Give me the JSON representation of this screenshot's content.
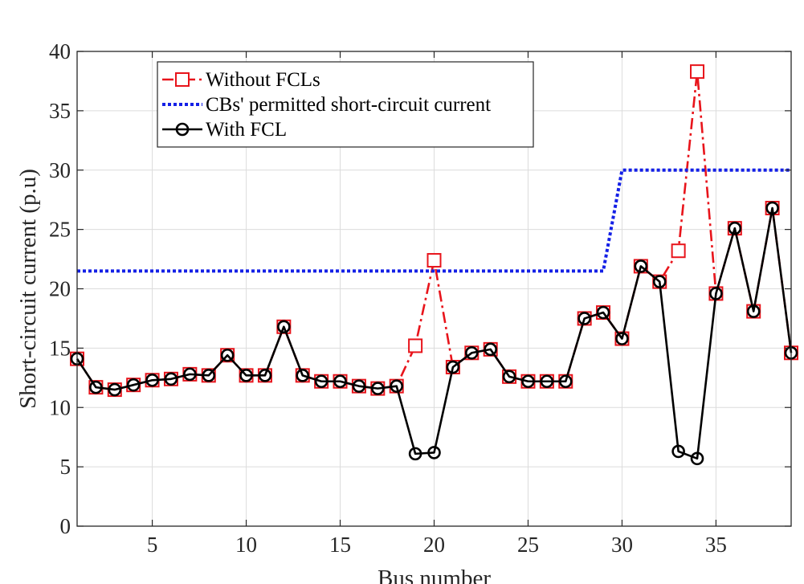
{
  "chart_data": {
    "type": "line",
    "title": "",
    "xlabel": "Bus number",
    "ylabel": "Short-circuit current (p.u)",
    "xlim": [
      1,
      39
    ],
    "ylim": [
      0,
      40
    ],
    "xticks": [
      5,
      10,
      15,
      20,
      25,
      30,
      35
    ],
    "yticks": [
      0,
      5,
      10,
      15,
      20,
      25,
      30,
      35,
      40
    ],
    "grid": true,
    "legend_position": "top-left",
    "series": [
      {
        "name": "Without FCLs",
        "style": "dash-dot",
        "marker": "square",
        "color": "#e8141b",
        "x": [
          1,
          2,
          3,
          4,
          5,
          6,
          7,
          8,
          9,
          10,
          11,
          12,
          13,
          14,
          15,
          16,
          17,
          18,
          19,
          20,
          21,
          22,
          23,
          24,
          25,
          26,
          27,
          28,
          29,
          30,
          31,
          32,
          33,
          34,
          35,
          36,
          37,
          38,
          39
        ],
        "y": [
          14.1,
          11.7,
          11.5,
          11.9,
          12.3,
          12.4,
          12.8,
          12.7,
          14.4,
          12.7,
          12.7,
          16.8,
          12.7,
          12.2,
          12.2,
          11.8,
          11.6,
          11.8,
          15.2,
          22.4,
          13.4,
          14.6,
          14.9,
          12.6,
          12.2,
          12.2,
          12.2,
          17.5,
          18.0,
          15.8,
          21.9,
          20.6,
          23.2,
          38.3,
          19.6,
          25.1,
          18.1,
          26.8,
          14.6
        ]
      },
      {
        "name": "CBs' permitted short-circuit current",
        "style": "dotted",
        "marker": "none",
        "color": "#1420e6",
        "x": [
          1,
          29,
          30,
          39
        ],
        "y": [
          21.5,
          21.5,
          30.0,
          30.0
        ]
      },
      {
        "name": "With FCL",
        "style": "solid",
        "marker": "circle",
        "color": "#000000",
        "x": [
          1,
          2,
          3,
          4,
          5,
          6,
          7,
          8,
          9,
          10,
          11,
          12,
          13,
          14,
          15,
          16,
          17,
          18,
          19,
          20,
          21,
          22,
          23,
          24,
          25,
          26,
          27,
          28,
          29,
          30,
          31,
          32,
          33,
          34,
          35,
          36,
          37,
          38,
          39
        ],
        "y": [
          14.1,
          11.7,
          11.5,
          11.9,
          12.3,
          12.4,
          12.8,
          12.7,
          14.4,
          12.7,
          12.7,
          16.8,
          12.7,
          12.2,
          12.2,
          11.8,
          11.6,
          11.8,
          6.1,
          6.2,
          13.4,
          14.6,
          14.9,
          12.6,
          12.2,
          12.2,
          12.2,
          17.5,
          18.0,
          15.8,
          21.9,
          20.6,
          6.3,
          5.7,
          19.6,
          25.1,
          18.1,
          26.8,
          14.6
        ]
      }
    ]
  }
}
